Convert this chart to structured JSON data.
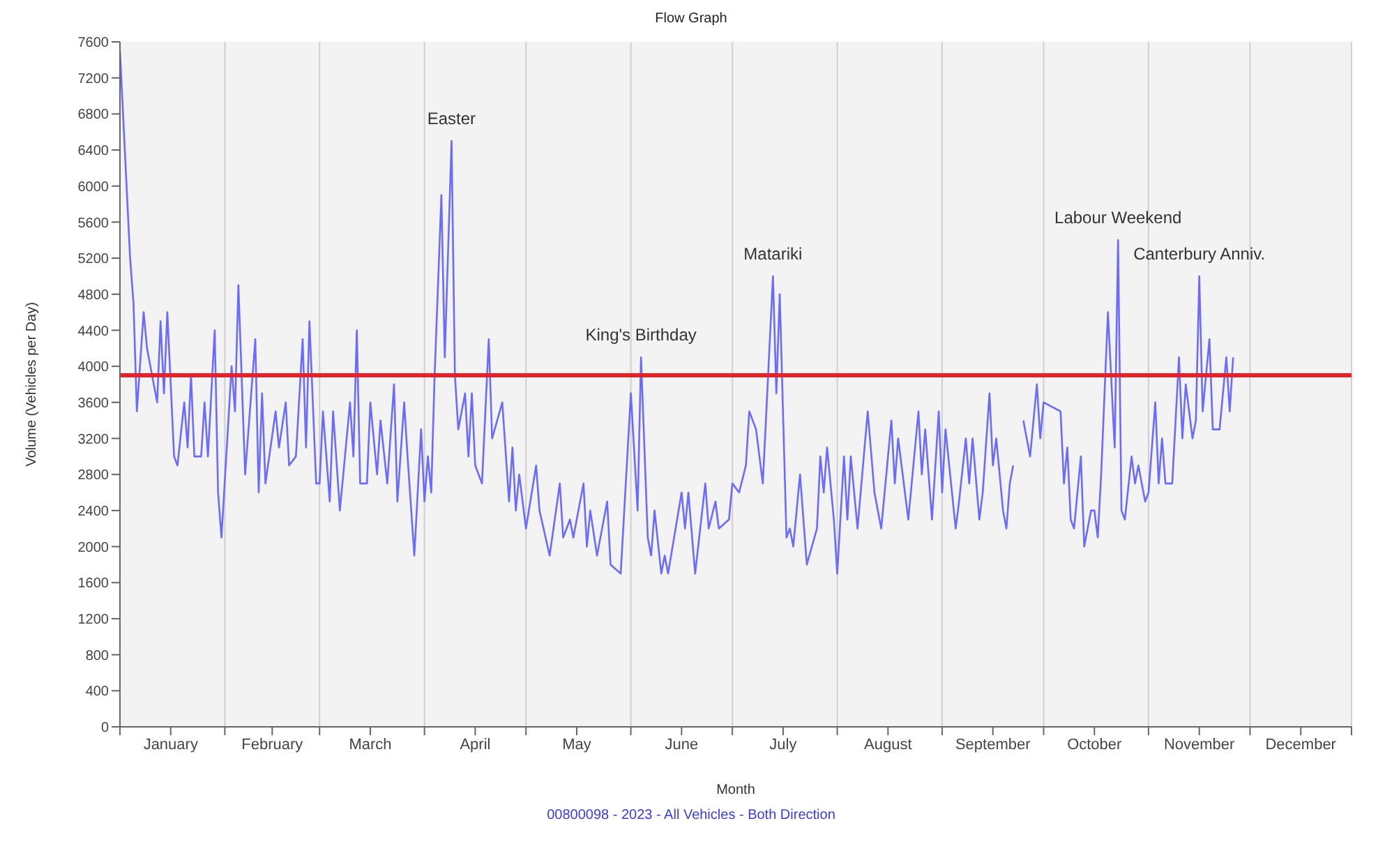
{
  "chart_data": {
    "type": "line",
    "title": "Flow Graph",
    "xlabel": "Month",
    "ylabel": "Volume (Vehicles per Day)",
    "xlim": [
      "2023-01-01",
      "2023-12-31"
    ],
    "xticks": [
      {
        "value": "2023-01-01",
        "label": null
      },
      {
        "value": "2023-01-16",
        "label": "January"
      },
      {
        "value": "2023-02-01",
        "label": null
      },
      {
        "value": "2023-02-15",
        "label": "February"
      },
      {
        "value": "2023-03-01",
        "label": null
      },
      {
        "value": "2023-03-16",
        "label": "March"
      },
      {
        "value": "2023-04-01",
        "label": null
      },
      {
        "value": "2023-04-16",
        "label": "April"
      },
      {
        "value": "2023-05-01",
        "label": null
      },
      {
        "value": "2023-05-16",
        "label": "May"
      },
      {
        "value": "2023-06-01",
        "label": null
      },
      {
        "value": "2023-06-16",
        "label": "June"
      },
      {
        "value": "2023-07-01",
        "label": null
      },
      {
        "value": "2023-07-16",
        "label": "July"
      },
      {
        "value": "2023-08-01",
        "label": null
      },
      {
        "value": "2023-08-16",
        "label": "August"
      },
      {
        "value": "2023-09-01",
        "label": null
      },
      {
        "value": "2023-09-16",
        "label": "September"
      },
      {
        "value": "2023-10-01",
        "label": null
      },
      {
        "value": "2023-10-16",
        "label": "October"
      },
      {
        "value": "2023-11-01",
        "label": null
      },
      {
        "value": "2023-11-16",
        "label": "November"
      },
      {
        "value": "2023-12-01",
        "label": null
      },
      {
        "value": "2023-12-16",
        "label": "December"
      },
      {
        "value": "2023-12-31",
        "label": null
      }
    ],
    "ylim": [
      0,
      7600
    ],
    "yticks": [
      0,
      400,
      800,
      1200,
      1600,
      2000,
      2400,
      2800,
      3200,
      3600,
      4000,
      4400,
      4800,
      5200,
      5600,
      6000,
      6400,
      6800,
      7200,
      7600
    ],
    "grid": "x",
    "series": [
      {
        "color": "#6b6bff",
        "x": [
          "2023-01-01",
          "2023-01-04",
          "2023-01-05",
          "2023-01-06",
          "2023-01-08",
          "2023-01-09",
          "2023-01-11",
          "2023-01-12",
          "2023-01-13",
          "2023-01-14",
          "2023-01-15",
          "2023-01-17",
          "2023-01-18",
          "2023-01-20",
          "2023-01-21",
          "2023-01-22",
          "2023-01-23",
          "2023-01-25",
          "2023-01-26",
          "2023-01-27",
          "2023-01-29",
          "2023-01-30",
          "2023-01-31",
          "2023-02-03",
          "2023-02-04",
          "2023-02-05",
          "2023-02-07",
          "2023-02-10",
          "2023-02-11",
          "2023-02-12",
          "2023-02-13",
          "2023-02-16",
          "2023-02-17",
          "2023-02-19",
          "2023-02-20",
          "2023-02-22",
          "2023-02-24",
          "2023-02-25",
          "2023-02-26",
          "2023-02-28",
          "2023-03-01",
          "2023-03-02",
          "2023-03-04",
          "2023-03-05",
          "2023-03-07",
          "2023-03-10",
          "2023-03-11",
          "2023-03-12",
          "2023-03-13",
          "2023-03-15",
          "2023-03-16",
          "2023-03-18",
          "2023-03-19",
          "2023-03-21",
          "2023-03-23",
          "2023-03-24",
          "2023-03-26",
          "2023-03-27",
          "2023-03-29",
          "2023-03-31",
          "2023-04-01",
          "2023-04-02",
          "2023-04-03",
          "2023-04-04",
          "2023-04-06",
          "2023-04-07",
          "2023-04-09",
          "2023-04-10",
          "2023-04-11",
          "2023-04-13",
          "2023-04-14",
          "2023-04-15",
          "2023-04-16",
          "2023-04-18",
          "2023-04-20",
          "2023-04-21",
          "2023-04-24",
          "2023-04-26",
          "2023-04-27",
          "2023-04-28",
          "2023-04-29",
          "2023-05-01",
          "2023-05-04",
          "2023-05-05",
          "2023-05-08",
          "2023-05-11",
          "2023-05-12",
          "2023-05-14",
          "2023-05-15",
          "2023-05-18",
          "2023-05-19",
          "2023-05-20",
          "2023-05-22",
          "2023-05-25",
          "2023-05-26",
          "2023-05-29",
          "2023-06-01",
          "2023-06-03",
          "2023-06-04",
          "2023-06-06",
          "2023-06-07",
          "2023-06-08",
          "2023-06-10",
          "2023-06-11",
          "2023-06-12",
          "2023-06-16",
          "2023-06-17",
          "2023-06-18",
          "2023-06-20",
          "2023-06-23",
          "2023-06-24",
          "2023-06-26",
          "2023-06-27",
          "2023-06-30",
          "2023-07-01",
          "2023-07-03",
          "2023-07-05",
          "2023-07-06",
          "2023-07-08",
          "2023-07-10",
          "2023-07-13",
          "2023-07-14",
          "2023-07-15",
          "2023-07-17",
          "2023-07-18",
          "2023-07-19",
          "2023-07-21",
          "2023-07-23",
          "2023-07-26",
          "2023-07-27",
          "2023-07-28",
          "2023-07-29",
          "2023-07-31",
          "2023-08-01",
          "2023-08-03",
          "2023-08-04",
          "2023-08-05",
          "2023-08-07",
          "2023-08-10",
          "2023-08-12",
          "2023-08-14",
          "2023-08-17",
          "2023-08-18",
          "2023-08-19",
          "2023-08-22",
          "2023-08-25",
          "2023-08-26",
          "2023-08-27",
          "2023-08-29",
          "2023-08-31",
          "2023-09-01",
          "2023-09-02",
          "2023-09-05",
          "2023-09-06",
          "2023-09-08",
          "2023-09-09",
          "2023-09-10",
          "2023-09-12",
          "2023-09-13",
          "2023-09-15",
          "2023-09-16",
          "2023-09-17",
          "2023-09-19",
          "2023-09-20",
          "2023-09-21",
          "2023-09-22",
          "2023-09-23",
          "2023-09-25",
          "2023-09-27",
          "2023-09-29",
          "2023-09-30",
          "2023-10-01",
          "2023-10-06",
          "2023-10-07",
          "2023-10-08",
          "2023-10-09",
          "2023-10-10",
          "2023-10-12",
          "2023-10-13",
          "2023-10-15",
          "2023-10-16",
          "2023-10-17",
          "2023-10-18",
          "2023-10-20",
          "2023-10-22",
          "2023-10-23",
          "2023-10-24",
          "2023-10-25",
          "2023-10-27",
          "2023-10-28",
          "2023-10-29",
          "2023-10-31",
          "2023-11-01",
          "2023-11-03",
          "2023-11-04",
          "2023-11-05",
          "2023-11-06",
          "2023-11-08",
          "2023-11-10",
          "2023-11-11",
          "2023-11-12",
          "2023-11-14",
          "2023-11-15",
          "2023-11-16",
          "2023-11-17",
          "2023-11-19",
          "2023-11-20",
          "2023-11-22",
          "2023-11-24",
          "2023-11-25",
          "2023-11-26"
        ],
        "values": [
          7500,
          5200,
          4700,
          3500,
          4600,
          4200,
          3800,
          3600,
          4500,
          3700,
          4600,
          3000,
          2900,
          3600,
          3100,
          3900,
          3000,
          3000,
          3600,
          3000,
          4400,
          2600,
          2100,
          4000,
          3500,
          4900,
          2800,
          4300,
          2600,
          3700,
          2700,
          3500,
          3100,
          3600,
          2900,
          3000,
          4300,
          3100,
          4500,
          2700,
          2700,
          3500,
          2500,
          3500,
          2400,
          3600,
          3000,
          4400,
          2700,
          2700,
          3600,
          2800,
          3400,
          2700,
          3800,
          2500,
          3600,
          3000,
          1900,
          3300,
          2500,
          3000,
          2600,
          3900,
          5900,
          4100,
          6500,
          3900,
          3300,
          3700,
          3000,
          3700,
          2900,
          2700,
          4300,
          3200,
          3600,
          2500,
          3100,
          2400,
          2800,
          2200,
          2900,
          2400,
          1900,
          2700,
          2100,
          2300,
          2100,
          2700,
          2000,
          2400,
          1900,
          2500,
          1800,
          1700,
          3700,
          2400,
          4100,
          2100,
          1900,
          2400,
          1700,
          1900,
          1700,
          2600,
          2200,
          2600,
          1700,
          2700,
          2200,
          2500,
          2200,
          2300,
          2700,
          2600,
          2900,
          3500,
          3300,
          2700,
          5000,
          3700,
          4800,
          2100,
          2200,
          2000,
          2800,
          1800,
          2200,
          3000,
          2600,
          3100,
          2300,
          1700,
          3000,
          2300,
          3000,
          2200,
          3500,
          2600,
          2200,
          3400,
          2700,
          3200,
          2300,
          3500,
          2800,
          3300,
          2300,
          3500,
          2600,
          3300,
          2200,
          2500,
          3200,
          2700,
          3200,
          2300,
          2600,
          3700,
          2900,
          3200,
          2400,
          2200,
          2700,
          2900,
          null,
          3400,
          3000,
          3800,
          3200,
          3600,
          3500,
          2700,
          3100,
          2300,
          2200,
          3000,
          2000,
          2400,
          2400,
          2100,
          2800,
          4600,
          3100,
          5400,
          2400,
          2300,
          3000,
          2700,
          2900,
          2500,
          2600,
          3600,
          2700,
          3200,
          2700,
          2700,
          4100,
          3200,
          3800,
          3200,
          3400,
          5000,
          3500,
          4300,
          3300,
          3300,
          4100,
          3500,
          4100
        ]
      }
    ],
    "ref_lines": [
      {
        "axis": "y",
        "value": 3900,
        "color": "#e8202a"
      }
    ],
    "annotations": [
      {
        "text": "Easter",
        "x": "2023-04-09",
        "y": 6500
      },
      {
        "text": "King's Birthday",
        "x": "2023-06-04",
        "y": 4100
      },
      {
        "text": "Matariki",
        "x": "2023-07-13",
        "y": 5000
      },
      {
        "text": "Labour Weekend",
        "x": "2023-10-23",
        "y": 5400
      },
      {
        "text": "Canterbury Anniv.",
        "x": "2023-11-16",
        "y": 5000
      },
      "00800098 - 2023 - All Vehicles - Both Direction"
    ]
  }
}
